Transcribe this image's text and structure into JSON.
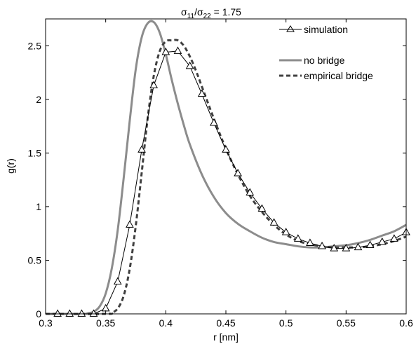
{
  "chart_data": {
    "type": "line",
    "title": {
      "sigma": "σ",
      "sub1": "11",
      "sub2": "22",
      "suffix": " = 1.75"
    },
    "xlabel": "r [nm]",
    "ylabel": "g(r)",
    "xlim": [
      0.3,
      0.6
    ],
    "ylim": [
      0,
      2.75
    ],
    "xticks": [
      0.3,
      0.35,
      0.4,
      0.45,
      0.5,
      0.55,
      0.6
    ],
    "xtick_labels": [
      "0.3",
      "0.35",
      "0.4",
      "0.45",
      "0.5",
      "0.55",
      "0.6"
    ],
    "yticks": [
      0,
      0.5,
      1,
      1.5,
      2,
      2.5
    ],
    "ytick_labels": [
      "0",
      "0.5",
      "1",
      "1.5",
      "2",
      "2.5"
    ],
    "legend_position": "top-right",
    "series": [
      {
        "name": "simulation",
        "color": "#000000",
        "marker": "triangle",
        "x": [
          0.31,
          0.32,
          0.33,
          0.34,
          0.35,
          0.36,
          0.37,
          0.38,
          0.39,
          0.4,
          0.41,
          0.42,
          0.43,
          0.44,
          0.45,
          0.46,
          0.47,
          0.48,
          0.49,
          0.5,
          0.51,
          0.52,
          0.53,
          0.54,
          0.55,
          0.56,
          0.57,
          0.58,
          0.59,
          0.6
        ],
        "y": [
          0,
          0,
          0,
          0,
          0.05,
          0.3,
          0.83,
          1.53,
          2.13,
          2.44,
          2.45,
          2.31,
          2.05,
          1.78,
          1.53,
          1.31,
          1.13,
          0.98,
          0.85,
          0.76,
          0.7,
          0.66,
          0.63,
          0.61,
          0.61,
          0.62,
          0.64,
          0.67,
          0.7,
          0.76
        ]
      },
      {
        "name": "no bridge",
        "color": "#8c8c8c",
        "x": [
          0.3,
          0.33,
          0.335,
          0.34,
          0.345,
          0.35,
          0.355,
          0.36,
          0.365,
          0.37,
          0.375,
          0.38,
          0.385,
          0.39,
          0.395,
          0.4,
          0.405,
          0.41,
          0.415,
          0.42,
          0.43,
          0.44,
          0.45,
          0.46,
          0.47,
          0.48,
          0.49,
          0.5,
          0.51,
          0.52,
          0.53,
          0.54,
          0.55,
          0.56,
          0.57,
          0.58,
          0.59,
          0.6
        ],
        "y": [
          0,
          0,
          0.005,
          0.02,
          0.07,
          0.19,
          0.42,
          0.78,
          1.27,
          1.8,
          2.28,
          2.58,
          2.71,
          2.72,
          2.62,
          2.42,
          2.18,
          1.96,
          1.76,
          1.58,
          1.3,
          1.09,
          0.94,
          0.84,
          0.77,
          0.71,
          0.67,
          0.65,
          0.63,
          0.62,
          0.62,
          0.63,
          0.64,
          0.66,
          0.69,
          0.73,
          0.77,
          0.83
        ]
      },
      {
        "name": "empirical bridge",
        "color": "#404040",
        "dashed": true,
        "x": [
          0.3,
          0.35,
          0.355,
          0.36,
          0.365,
          0.37,
          0.375,
          0.38,
          0.385,
          0.39,
          0.395,
          0.4,
          0.405,
          0.41,
          0.415,
          0.42,
          0.425,
          0.43,
          0.44,
          0.45,
          0.46,
          0.47,
          0.48,
          0.49,
          0.5,
          0.51,
          0.52,
          0.53,
          0.54,
          0.55,
          0.56,
          0.57,
          0.58,
          0.59,
          0.6
        ],
        "y": [
          0,
          0,
          0.01,
          0.05,
          0.17,
          0.42,
          0.82,
          1.32,
          1.83,
          2.22,
          2.45,
          2.54,
          2.55,
          2.55,
          2.5,
          2.4,
          2.27,
          2.12,
          1.82,
          1.54,
          1.3,
          1.1,
          0.95,
          0.83,
          0.74,
          0.68,
          0.65,
          0.63,
          0.62,
          0.62,
          0.62,
          0.63,
          0.65,
          0.68,
          0.72
        ]
      }
    ]
  }
}
